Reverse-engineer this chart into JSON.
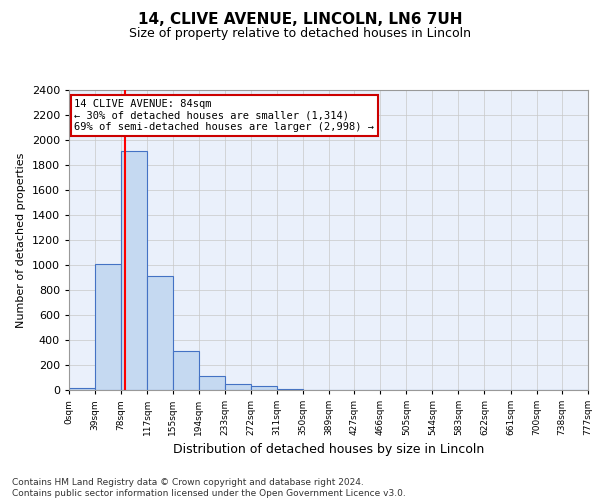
{
  "title1": "14, CLIVE AVENUE, LINCOLN, LN6 7UH",
  "title2": "Size of property relative to detached houses in Lincoln",
  "xlabel": "Distribution of detached houses by size in Lincoln",
  "ylabel": "Number of detached properties",
  "annotation_text": "14 CLIVE AVENUE: 84sqm\n← 30% of detached houses are smaller (1,314)\n69% of semi-detached houses are larger (2,998) →",
  "bin_edges": [
    0,
    39,
    78,
    117,
    155,
    194,
    233,
    272,
    311,
    350,
    389,
    427,
    466,
    505,
    544,
    583,
    622,
    661,
    700,
    738,
    777
  ],
  "bar_heights": [
    20,
    1010,
    1910,
    910,
    310,
    110,
    45,
    30,
    10,
    3,
    1,
    0,
    0,
    0,
    0,
    0,
    0,
    0,
    0,
    0
  ],
  "bar_color": "#c5d9f1",
  "bar_edge_color": "#4472c4",
  "red_line_x": 84,
  "annotation_box_color": "#ffffff",
  "annotation_box_edge_color": "#cc0000",
  "ylim": [
    0,
    2400
  ],
  "yticks": [
    0,
    200,
    400,
    600,
    800,
    1000,
    1200,
    1400,
    1600,
    1800,
    2000,
    2200,
    2400
  ],
  "footer_text": "Contains HM Land Registry data © Crown copyright and database right 2024.\nContains public sector information licensed under the Open Government Licence v3.0.",
  "bg_color": "#ffffff",
  "grid_color": "#c8c8c8",
  "plot_bg_color": "#eaf0fb"
}
